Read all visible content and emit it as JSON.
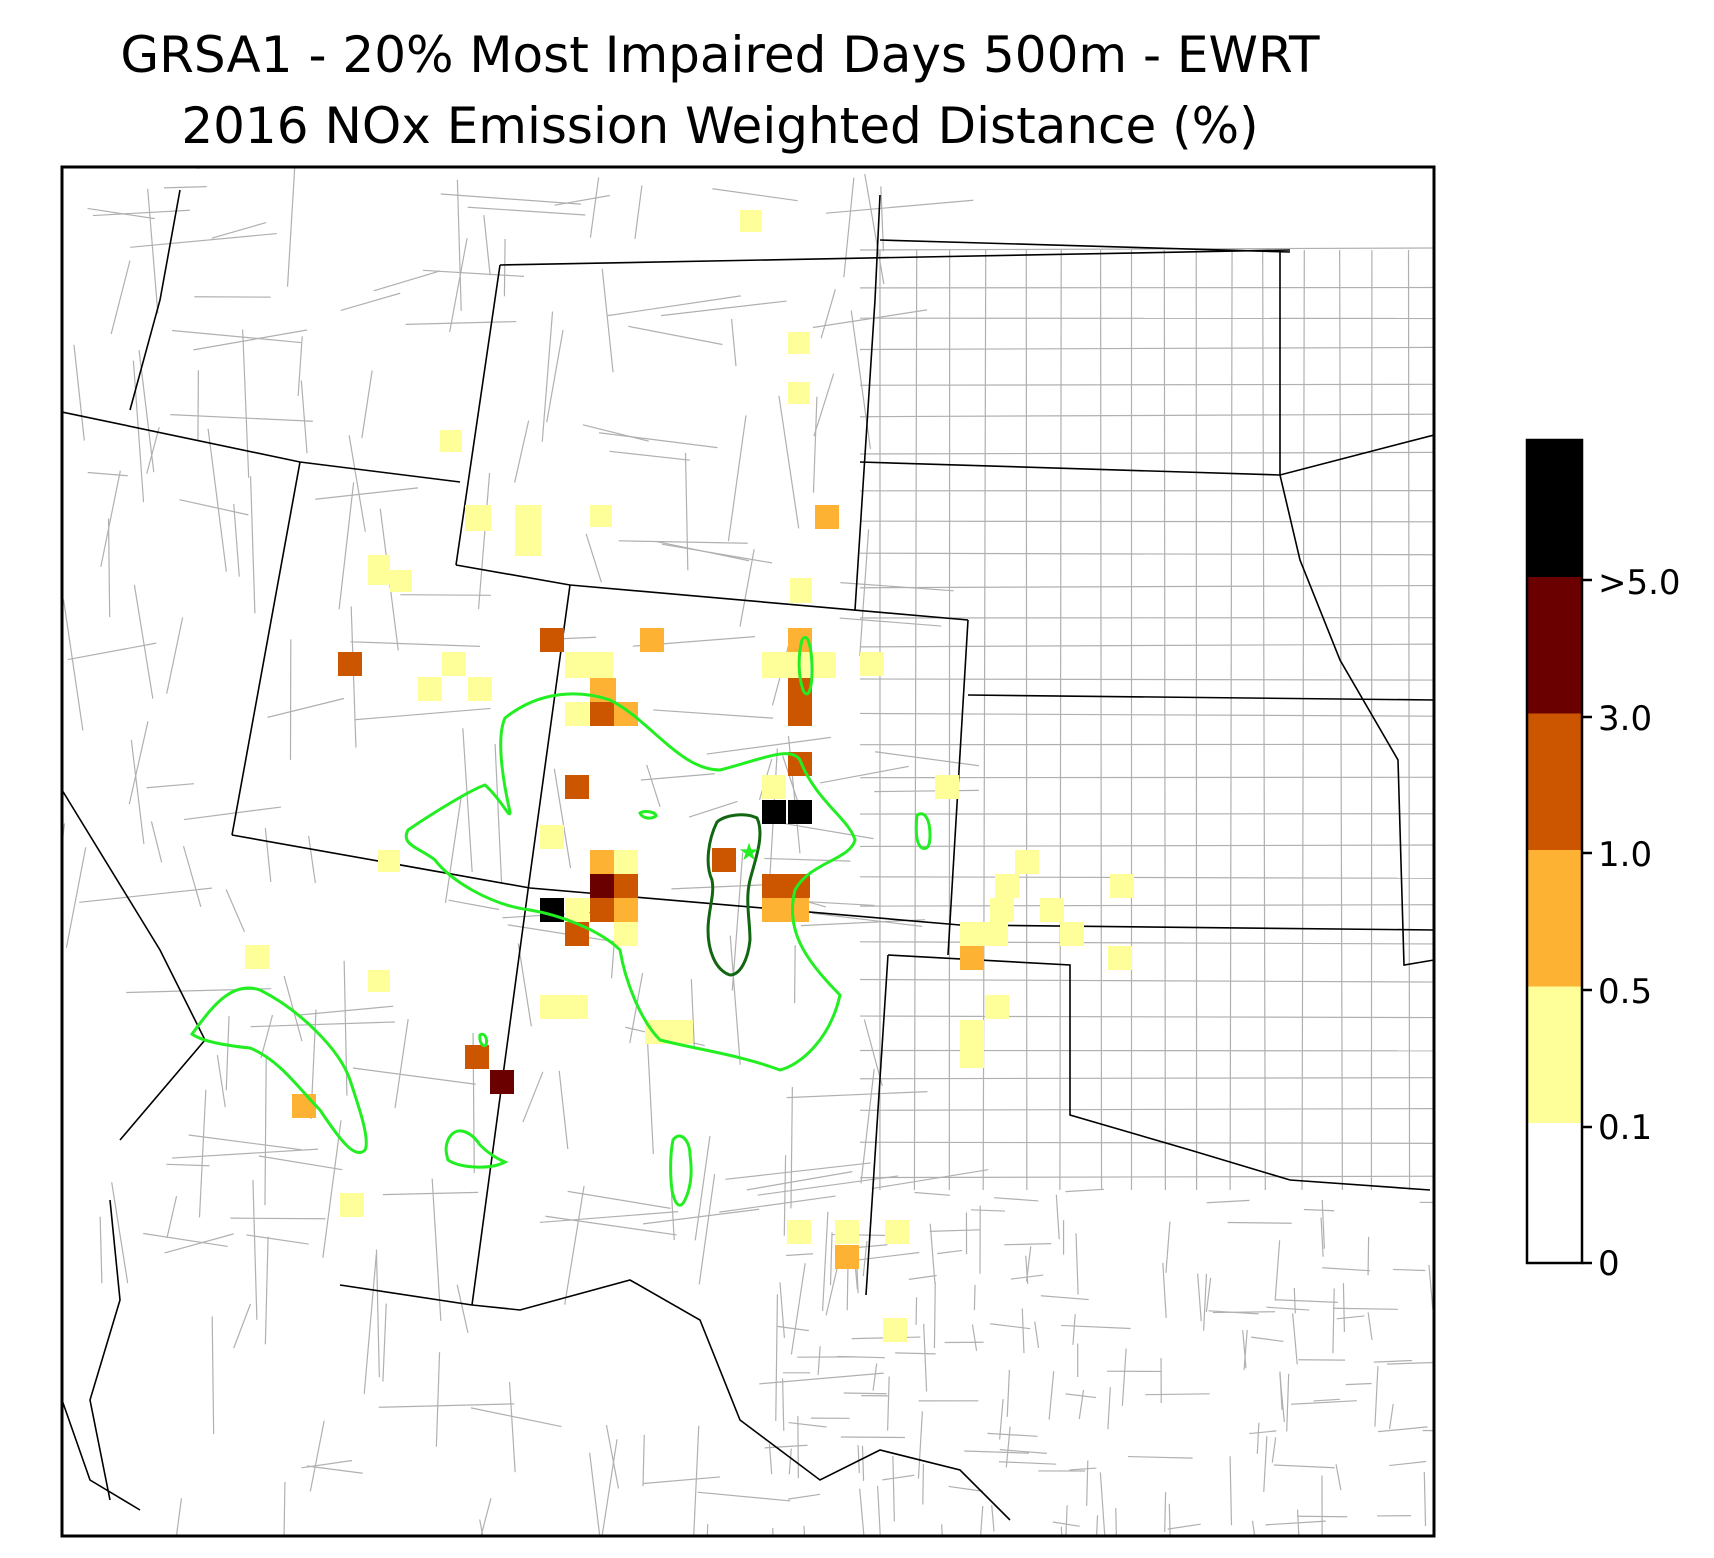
{
  "title_line1": "GRSA1 - 20% Most Impaired Days 500m - EWRT",
  "title_line2": "2016 NOx Emission Weighted Distance (%)",
  "colorbar": {
    "tick_labels": [
      "0",
      "0.1",
      "0.5",
      "1.0",
      "3.0",
      ">5.0"
    ],
    "bin_colors": [
      "#ffffff",
      "#ffff99",
      "#feb234",
      "#cc5500",
      "#6b0000",
      "#000000"
    ]
  },
  "chart_data": {
    "type": "heatmap",
    "title": "GRSA1 - 20% Most Impaired Days 500m - EWRT 2016 NOx Emission Weighted Distance (%)",
    "grid_on": false,
    "legend_position": "right",
    "value_bins": [
      "0–0.1",
      "0.1–0.5",
      "0.5–1.0",
      "1.0–3.0",
      "3.0–5.0",
      ">5.0"
    ],
    "highlighted_cells_count_by_bin": {
      "0.1–0.5": 44,
      "0.5–1.0": 9,
      "1.0–3.0": 13,
      "3.0–5.0": 2,
      ">5.0": 3
    },
    "contours": {
      "outer_color": "#22ee22",
      "inner_color": "#116611"
    },
    "receptor_marker": "star",
    "receptor_color": "#22ee22"
  }
}
